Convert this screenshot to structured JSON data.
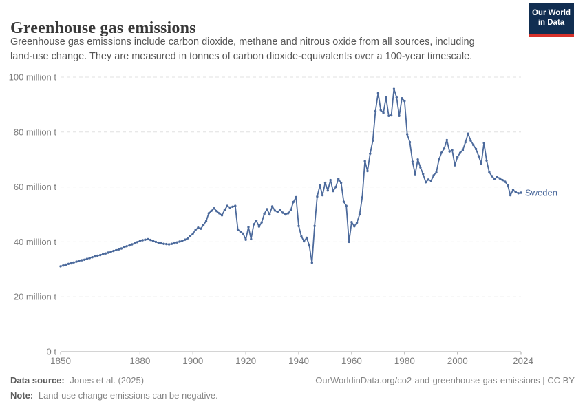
{
  "header": {
    "title": "Greenhouse gas emissions",
    "subtitle": "Greenhouse gas emissions include carbon dioxide, methane and nitrous oxide from all sources, including land-use change. They are measured in tonnes of carbon dioxide-equivalents over a 100-year timescale.",
    "logo": {
      "line1": "Our World",
      "line2": "in Data"
    }
  },
  "chart_data": {
    "type": "line",
    "title": "Greenhouse gas emissions",
    "unit": "million tonnes of carbon dioxide-equivalents",
    "grid": true,
    "legend_position": "end-of-line-label",
    "x_range": [
      1850,
      2024
    ],
    "ylim": [
      0,
      100
    ],
    "x_ticks": [
      1850,
      1880,
      1900,
      1920,
      1940,
      1960,
      1980,
      2000,
      2024
    ],
    "y_ticks": [
      {
        "value": 0,
        "label": "0 t"
      },
      {
        "value": 20,
        "label": "20 million t"
      },
      {
        "value": 40,
        "label": "40 million t"
      },
      {
        "value": 60,
        "label": "60 million t"
      },
      {
        "value": 80,
        "label": "80 million t"
      },
      {
        "value": 100,
        "label": "100 million t"
      }
    ],
    "line_color": "#4c6a9c",
    "series": [
      {
        "name": "Sweden",
        "start_year": 1850,
        "end_year": 2024,
        "unit": "million t",
        "values": [
          31.1,
          31.4,
          31.7,
          32.0,
          32.2,
          32.5,
          32.8,
          33.1,
          33.3,
          33.5,
          33.8,
          34.1,
          34.4,
          34.7,
          35.0,
          35.2,
          35.5,
          35.8,
          36.1,
          36.4,
          36.7,
          37.0,
          37.3,
          37.6,
          38.0,
          38.4,
          38.7,
          39.1,
          39.5,
          39.9,
          40.3,
          40.6,
          40.8,
          41.0,
          40.7,
          40.3,
          40.0,
          39.7,
          39.5,
          39.3,
          39.2,
          39.1,
          39.3,
          39.5,
          39.8,
          40.1,
          40.4,
          40.8,
          41.3,
          42.1,
          43.0,
          44.3,
          45.2,
          44.8,
          46.2,
          47.5,
          50.4,
          51.3,
          52.2,
          51.2,
          50.4,
          49.7,
          51.6,
          53.1,
          52.5,
          52.8,
          53.1,
          44.5,
          43.7,
          43.0,
          40.8,
          45.4,
          41.0,
          46.4,
          47.7,
          45.6,
          47.1,
          50.2,
          51.9,
          50.0,
          52.9,
          51.4,
          50.9,
          51.6,
          50.6,
          50.0,
          50.4,
          51.6,
          54.5,
          56.3,
          45.8,
          42.0,
          40.2,
          41.5,
          38.7,
          32.4,
          45.8,
          56.5,
          60.5,
          57.0,
          61.5,
          58.7,
          62.5,
          58.5,
          60.0,
          62.9,
          61.5,
          54.6,
          53.1,
          40.0,
          47.2,
          45.7,
          47.0,
          50.0,
          56.2,
          69.4,
          65.8,
          72.1,
          76.9,
          87.6,
          94.2,
          88.0,
          87.0,
          92.6,
          85.9,
          86.1,
          95.7,
          92.6,
          85.9,
          92.3,
          91.3,
          79.2,
          76.3,
          69.2,
          64.6,
          70.0,
          67.1,
          64.7,
          61.7,
          62.7,
          62.2,
          64.2,
          65.3,
          70.0,
          72.5,
          74.0,
          77.1,
          72.9,
          73.4,
          67.9,
          70.9,
          72.4,
          73.4,
          76.3,
          79.4,
          76.9,
          75.3,
          73.8,
          71.2,
          68.5,
          76.0,
          69.6,
          65.4,
          63.9,
          62.9,
          63.6,
          63.1,
          62.5,
          61.9,
          60.6,
          57.0,
          58.9,
          58.1,
          57.7,
          57.9
        ]
      }
    ]
  },
  "footer": {
    "datasource_label": "Data source:",
    "datasource": "Jones et al. (2025)",
    "note_label": "Note:",
    "note": "Land-use change emissions can be negative.",
    "link": "OurWorldinData.org/co2-and-greenhouse-gas-emissions | CC BY"
  }
}
